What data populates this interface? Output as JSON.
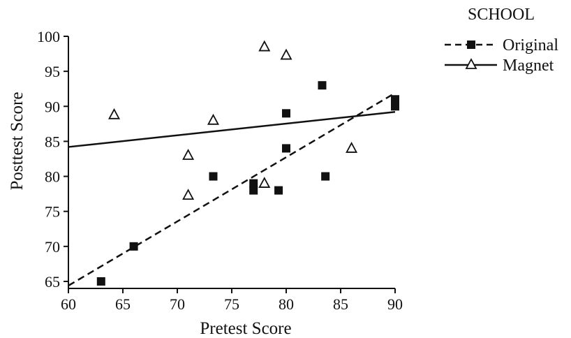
{
  "chart_data": {
    "type": "scatter",
    "title": "",
    "xlabel": "Pretest Score",
    "ylabel": "Posttest Score",
    "xlim": [
      60,
      90
    ],
    "ylim": [
      64,
      100
    ],
    "xticks": [
      60,
      65,
      70,
      75,
      80,
      85,
      90
    ],
    "yticks": [
      65,
      70,
      75,
      80,
      85,
      90,
      95,
      100
    ],
    "grid": false,
    "legend": {
      "title": "SCHOOL",
      "position": "top-right"
    },
    "series": [
      {
        "name": "Original",
        "marker": "filled-square",
        "line": "dashed",
        "color": "#111111",
        "points": [
          [
            63,
            65
          ],
          [
            66,
            70
          ],
          [
            73.3,
            80
          ],
          [
            77,
            78
          ],
          [
            77,
            79
          ],
          [
            79.3,
            78
          ],
          [
            80,
            84
          ],
          [
            80,
            89
          ],
          [
            83.3,
            93
          ],
          [
            83.6,
            80
          ],
          [
            90,
            90
          ],
          [
            90,
            91
          ]
        ],
        "fit_line": [
          [
            60,
            64.4
          ],
          [
            90,
            91.9
          ]
        ]
      },
      {
        "name": "Magnet",
        "marker": "open-triangle",
        "line": "solid",
        "color": "#111111",
        "points": [
          [
            64.2,
            88.8
          ],
          [
            71,
            83
          ],
          [
            71,
            77.3
          ],
          [
            73.3,
            88
          ],
          [
            78,
            98.5
          ],
          [
            78,
            79
          ],
          [
            80,
            97.3
          ],
          [
            86,
            84
          ]
        ],
        "fit_line": [
          [
            60,
            84.2
          ],
          [
            90,
            89.2
          ]
        ]
      }
    ]
  }
}
